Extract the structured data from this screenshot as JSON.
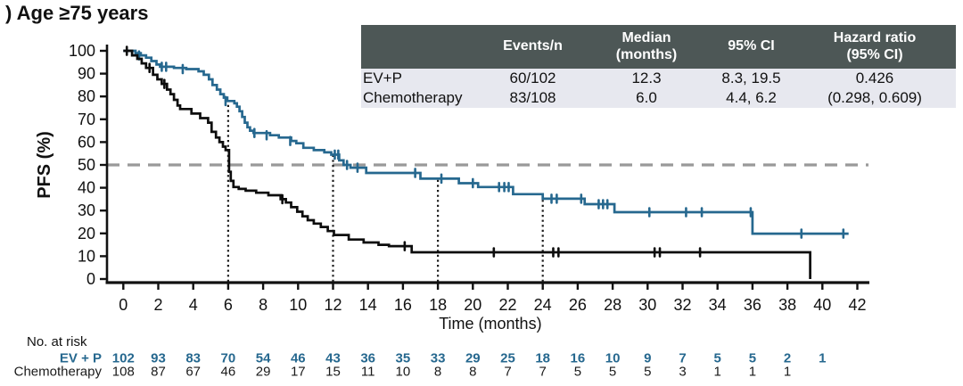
{
  "colors": {
    "accent_blue": "#26688f",
    "series_black": "#0d0d0d",
    "reference_gray": "#999999",
    "landmark_dotted": "#1a1a1a",
    "table_header_bg": "#4d5756",
    "table_header_text": "#ffffff",
    "table_row_bg": "#e7e8ef"
  },
  "results_table": {
    "headers": [
      "",
      "Events/n",
      "Median\n(months)",
      "95% CI",
      "Hazard ratio\n(95% CI)"
    ],
    "rows": [
      {
        "label": "EV+P",
        "events_n": "60/102",
        "median": "12.3",
        "ci": "8.3, 19.5",
        "hr": "0.426"
      },
      {
        "label": "Chemotherapy",
        "events_n": "83/108",
        "median": "6.0",
        "ci": "4.4, 6.2",
        "hr": "(0.298, 0.609)"
      }
    ]
  },
  "chart_data": {
    "type": "line",
    "subtype": "kaplan-meier-step",
    "title": ") Age ≥75 years",
    "xlabel": "Time (months)",
    "ylabel": "PFS (%)",
    "xlim": [
      0,
      42
    ],
    "ylim": [
      0,
      100
    ],
    "x_ticks": [
      0,
      2,
      4,
      6,
      8,
      10,
      12,
      14,
      16,
      18,
      20,
      22,
      24,
      26,
      28,
      30,
      32,
      34,
      36,
      38,
      40,
      42
    ],
    "y_ticks": [
      0,
      10,
      20,
      30,
      40,
      50,
      60,
      70,
      80,
      90,
      100
    ],
    "reference_line_y": 50,
    "landmark_lines_x": [
      6,
      12,
      18,
      24
    ],
    "grid": false,
    "legend_position": "none",
    "series": [
      {
        "name": "EV+P",
        "color": "#26688f",
        "steps": [
          [
            0,
            100
          ],
          [
            0.7,
            99
          ],
          [
            1.0,
            98
          ],
          [
            1.3,
            97
          ],
          [
            1.6,
            95.5
          ],
          [
            1.9,
            94
          ],
          [
            2.1,
            93
          ],
          [
            2.9,
            92.5
          ],
          [
            3.6,
            92
          ],
          [
            4.3,
            91
          ],
          [
            4.6,
            89.5
          ],
          [
            4.9,
            87.5
          ],
          [
            5.1,
            85
          ],
          [
            5.35,
            83
          ],
          [
            5.55,
            81
          ],
          [
            5.75,
            79.5
          ],
          [
            5.95,
            78
          ],
          [
            6.35,
            77
          ],
          [
            6.5,
            75.5
          ],
          [
            6.65,
            73.5
          ],
          [
            6.8,
            71
          ],
          [
            6.95,
            68.5
          ],
          [
            7.1,
            66.5
          ],
          [
            7.25,
            65
          ],
          [
            7.45,
            64
          ],
          [
            8.4,
            63
          ],
          [
            8.9,
            62
          ],
          [
            9.6,
            60.5
          ],
          [
            9.9,
            59.5
          ],
          [
            10.3,
            57.5
          ],
          [
            10.9,
            56.5
          ],
          [
            11.5,
            55.5
          ],
          [
            11.9,
            54.5
          ],
          [
            12.35,
            52
          ],
          [
            12.6,
            50
          ],
          [
            13.0,
            48.8
          ],
          [
            13.9,
            46.5
          ],
          [
            17.0,
            44
          ],
          [
            19.2,
            42
          ],
          [
            20.3,
            40.3
          ],
          [
            22.3,
            37.2
          ],
          [
            24.0,
            35.2
          ],
          [
            26.4,
            32.8
          ],
          [
            28.1,
            29.3
          ],
          [
            36.0,
            19.9
          ],
          [
            41.5,
            19.9
          ]
        ],
        "censors": [
          [
            0.9,
            98
          ],
          [
            2.2,
            93
          ],
          [
            2.45,
            93
          ],
          [
            3.4,
            92
          ],
          [
            5.85,
            78
          ],
          [
            7.5,
            64
          ],
          [
            8.2,
            63
          ],
          [
            9.55,
            60.5
          ],
          [
            12.1,
            54.5
          ],
          [
            12.3,
            54.5
          ],
          [
            12.8,
            50
          ],
          [
            13.4,
            48.8
          ],
          [
            16.7,
            46.5
          ],
          [
            18.2,
            44
          ],
          [
            20.0,
            42
          ],
          [
            21.5,
            40.3
          ],
          [
            21.8,
            40.3
          ],
          [
            22.05,
            40.3
          ],
          [
            24.5,
            35.2
          ],
          [
            24.8,
            35.2
          ],
          [
            26.2,
            35.2
          ],
          [
            27.2,
            32.8
          ],
          [
            27.45,
            32.8
          ],
          [
            27.7,
            32.8
          ],
          [
            30.1,
            29.3
          ],
          [
            32.2,
            29.3
          ],
          [
            33.1,
            29.3
          ],
          [
            35.9,
            29.3
          ],
          [
            38.8,
            19.9
          ],
          [
            41.2,
            19.9
          ]
        ]
      },
      {
        "name": "Chemotherapy",
        "color": "#0d0d0d",
        "steps": [
          [
            0,
            100
          ],
          [
            0.5,
            98
          ],
          [
            0.8,
            96.5
          ],
          [
            1.05,
            94.5
          ],
          [
            1.3,
            92.5
          ],
          [
            1.7,
            89.5
          ],
          [
            1.95,
            87.5
          ],
          [
            2.2,
            85.5
          ],
          [
            2.5,
            83
          ],
          [
            2.7,
            81
          ],
          [
            2.9,
            78.5
          ],
          [
            3.1,
            76
          ],
          [
            3.25,
            74.5
          ],
          [
            3.9,
            72.5
          ],
          [
            4.4,
            70.5
          ],
          [
            4.85,
            68.5
          ],
          [
            5.05,
            64.5
          ],
          [
            5.3,
            62
          ],
          [
            5.5,
            60
          ],
          [
            5.7,
            58
          ],
          [
            5.85,
            56.5
          ],
          [
            6.05,
            47
          ],
          [
            6.15,
            43
          ],
          [
            6.3,
            40.3
          ],
          [
            6.6,
            39.5
          ],
          [
            7.0,
            38.7
          ],
          [
            7.6,
            37.8
          ],
          [
            8.3,
            36.7
          ],
          [
            9.0,
            35
          ],
          [
            9.3,
            33.5
          ],
          [
            9.6,
            31.5
          ],
          [
            9.95,
            29.5
          ],
          [
            10.25,
            27.5
          ],
          [
            10.55,
            25.8
          ],
          [
            10.9,
            24.3
          ],
          [
            11.3,
            22.8
          ],
          [
            11.7,
            21
          ],
          [
            12.05,
            19.3
          ],
          [
            12.9,
            17.3
          ],
          [
            13.75,
            16
          ],
          [
            14.6,
            15
          ],
          [
            15.2,
            14.4
          ],
          [
            16.5,
            11.7
          ],
          [
            39.3,
            0
          ]
        ],
        "censors": [
          [
            0.2,
            100
          ],
          [
            1.5,
            92.5
          ],
          [
            2.35,
            85.5
          ],
          [
            9.1,
            35
          ],
          [
            16.1,
            14.4
          ],
          [
            21.2,
            11.7
          ],
          [
            24.6,
            11.7
          ],
          [
            24.9,
            11.7
          ],
          [
            30.4,
            11.7
          ],
          [
            30.7,
            11.7
          ],
          [
            33.0,
            11.7
          ]
        ]
      }
    ],
    "at_risk": {
      "label": "No. at risk",
      "times": [
        0,
        2,
        4,
        6,
        8,
        10,
        12,
        14,
        16,
        18,
        20,
        22,
        24,
        26,
        28,
        30,
        32,
        34,
        36,
        38,
        40
      ],
      "groups": [
        {
          "name": "EV + P",
          "color": "#26688f",
          "bold": true,
          "counts": [
            102,
            93,
            83,
            70,
            54,
            46,
            43,
            36,
            35,
            33,
            29,
            25,
            18,
            16,
            10,
            9,
            7,
            5,
            5,
            2,
            1
          ]
        },
        {
          "name": "Chemotherapy",
          "color": "#1a1a1a",
          "bold": false,
          "counts": [
            108,
            87,
            67,
            46,
            29,
            17,
            15,
            11,
            10,
            8,
            8,
            7,
            7,
            5,
            5,
            5,
            3,
            1,
            1,
            1
          ]
        }
      ]
    }
  }
}
